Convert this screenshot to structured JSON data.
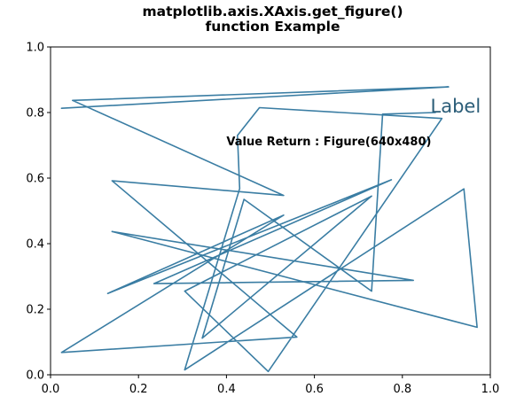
{
  "chart_data": {
    "type": "line",
    "title_lines": [
      "matplotlib.axis.XAxis.get_figure()",
      "function Example"
    ],
    "xlim": [
      0,
      1
    ],
    "ylim": [
      0,
      1
    ],
    "x_ticks": [
      "0.0",
      "0.2",
      "0.4",
      "0.6",
      "0.8",
      "1.0"
    ],
    "y_ticks": [
      "0.0",
      "0.2",
      "0.4",
      "0.6",
      "0.8",
      "1.0"
    ],
    "grid": false,
    "line_color": "#3a7da3",
    "label_color": "#2b5d78",
    "series": [
      {
        "x": [
          0.025,
          0.905,
          0.05,
          0.53,
          0.14,
          0.56,
          0.025,
          0.53,
          0.13,
          0.775,
          0.235,
          0.825,
          0.14,
          0.97,
          0.94,
          0.305,
          0.43,
          0.425,
          0.475,
          0.89,
          0.495,
          0.305,
          0.73,
          0.345,
          0.44,
          0.73,
          0.755,
          0.875
        ],
        "y": [
          0.813,
          0.878,
          0.837,
          0.547,
          0.592,
          0.115,
          0.068,
          0.487,
          0.248,
          0.595,
          0.278,
          0.288,
          0.437,
          0.145,
          0.567,
          0.015,
          0.568,
          0.73,
          0.815,
          0.782,
          0.01,
          0.255,
          0.545,
          0.112,
          0.535,
          0.255,
          0.795,
          0.8
        ]
      }
    ],
    "annotations": {
      "value_return": {
        "text": "Value Return : Figure(640x480)",
        "x": 0.4,
        "y": 0.7
      },
      "label": {
        "text": "Label",
        "x": 0.87,
        "y": 0.8
      }
    }
  }
}
